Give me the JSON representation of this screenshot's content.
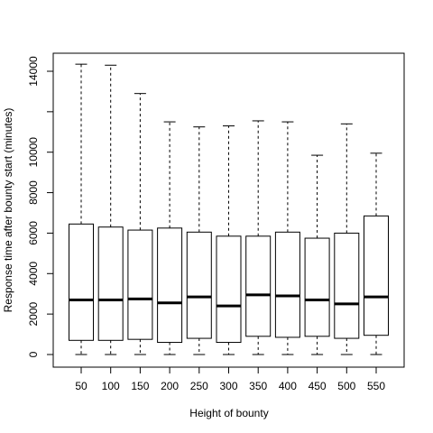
{
  "chart_data": {
    "type": "boxplot",
    "title": "",
    "xlabel": "Height of bounty",
    "ylabel": "Response time after bounty start (minutes)",
    "ylim": [
      0,
      14500
    ],
    "yticks": [
      0,
      2000,
      4000,
      6000,
      8000,
      10000,
      12000,
      14000
    ],
    "ytick_labels": [
      "0",
      "2000",
      "4000",
      "6000",
      "8000",
      "10000",
      "",
      "14000"
    ],
    "categories": [
      "50",
      "100",
      "150",
      "200",
      "250",
      "300",
      "350",
      "400",
      "450",
      "500",
      "550"
    ],
    "boxes": [
      {
        "min": 0,
        "q1": 700,
        "median": 2700,
        "q3": 6450,
        "max": 14350
      },
      {
        "min": 0,
        "q1": 700,
        "median": 2700,
        "q3": 6300,
        "max": 14300
      },
      {
        "min": 0,
        "q1": 750,
        "median": 2750,
        "q3": 6150,
        "max": 12900
      },
      {
        "min": 0,
        "q1": 600,
        "median": 2550,
        "q3": 6250,
        "max": 11500
      },
      {
        "min": 0,
        "q1": 800,
        "median": 2850,
        "q3": 6050,
        "max": 11250
      },
      {
        "min": 0,
        "q1": 600,
        "median": 2400,
        "q3": 5850,
        "max": 11300
      },
      {
        "min": 0,
        "q1": 900,
        "median": 2950,
        "q3": 5850,
        "max": 11550
      },
      {
        "min": 0,
        "q1": 850,
        "median": 2900,
        "q3": 6050,
        "max": 11500
      },
      {
        "min": 0,
        "q1": 900,
        "median": 2700,
        "q3": 5750,
        "max": 9850
      },
      {
        "min": 0,
        "q1": 800,
        "median": 2500,
        "q3": 6000,
        "max": 11400
      },
      {
        "min": 0,
        "q1": 950,
        "median": 2850,
        "q3": 6850,
        "max": 9950
      }
    ]
  }
}
